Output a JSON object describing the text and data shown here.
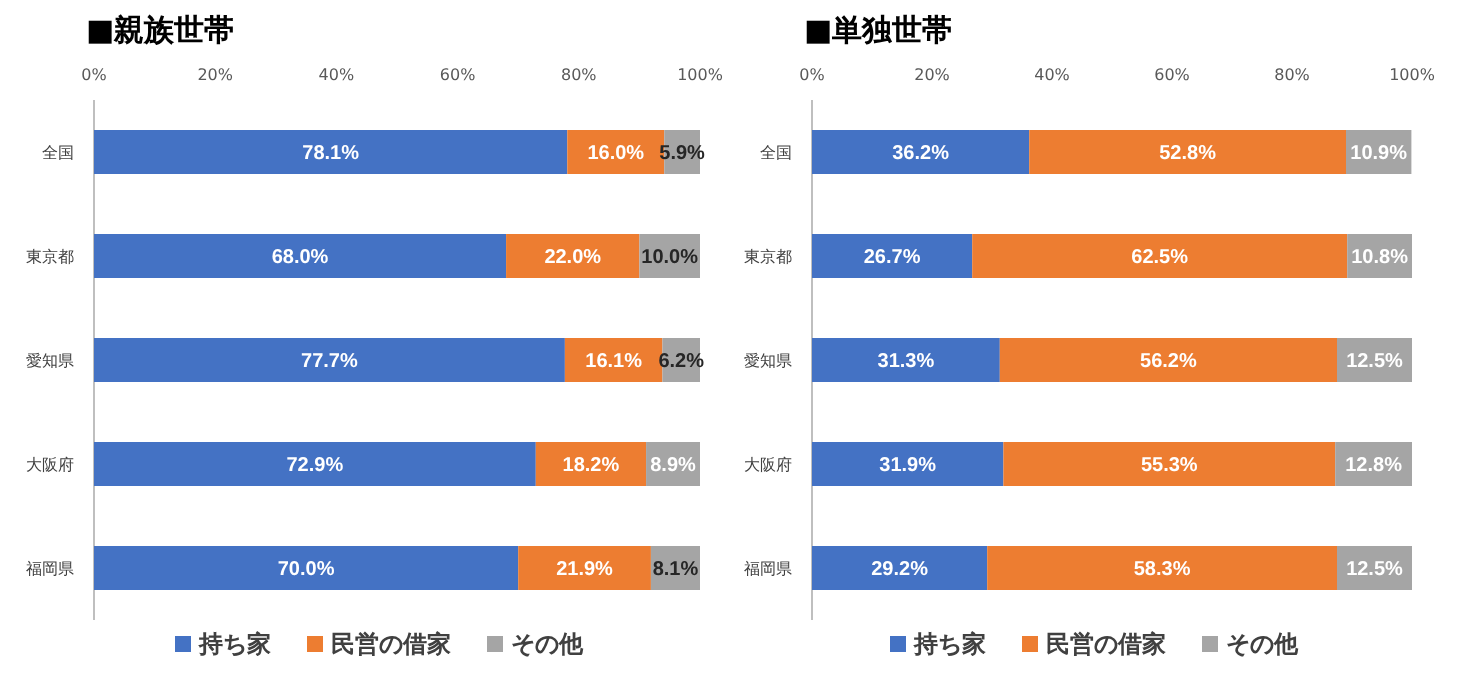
{
  "chart_data": [
    {
      "type": "bar",
      "title": "■親族世帯",
      "orientation": "horizontal",
      "stacked": true,
      "categories": [
        "全国",
        "東京都",
        "愛知県",
        "大阪府",
        "福岡県"
      ],
      "series": [
        {
          "name": "持ち家",
          "color": "#4472c4",
          "values": [
            78.1,
            68.0,
            77.7,
            72.9,
            70.0
          ],
          "value_labels": [
            "78.1%",
            "68.0%",
            "77.7%",
            "72.9%",
            "70.0%"
          ]
        },
        {
          "name": "民営の借家",
          "color": "#ed7d31",
          "values": [
            16.0,
            22.0,
            16.1,
            18.2,
            21.9
          ],
          "value_labels": [
            "16.0%",
            "22.0%",
            "16.1%",
            "18.2%",
            "21.9%"
          ]
        },
        {
          "name": "その他",
          "color": "#a5a5a5",
          "values": [
            5.9,
            10.0,
            6.2,
            8.9,
            8.1
          ],
          "value_labels": [
            "5.9%",
            "10.0%",
            "6.2%",
            "8.9%",
            "8.1%"
          ]
        }
      ],
      "xlim": [
        0,
        100
      ],
      "xticks": [
        {
          "value": 0,
          "label": "0%"
        },
        {
          "value": 20,
          "label": "20%"
        },
        {
          "value": 40,
          "label": "40%"
        },
        {
          "value": 60,
          "label": "60%"
        },
        {
          "value": 80,
          "label": "80%"
        },
        {
          "value": 100,
          "label": "100%"
        }
      ],
      "legend": "bottom",
      "grid": false
    },
    {
      "type": "bar",
      "title": "■単独世帯",
      "orientation": "horizontal",
      "stacked": true,
      "categories": [
        "全国",
        "東京都",
        "愛知県",
        "大阪府",
        "福岡県"
      ],
      "series": [
        {
          "name": "持ち家",
          "color": "#4472c4",
          "values": [
            36.2,
            26.7,
            31.3,
            31.9,
            29.2
          ],
          "value_labels": [
            "36.2%",
            "26.7%",
            "31.3%",
            "31.9%",
            "29.2%"
          ]
        },
        {
          "name": "民営の借家",
          "color": "#ed7d31",
          "values": [
            52.8,
            62.5,
            56.2,
            55.3,
            58.3
          ],
          "value_labels": [
            "52.8%",
            "62.5%",
            "56.2%",
            "55.3%",
            "58.3%"
          ]
        },
        {
          "name": "その他",
          "color": "#a5a5a5",
          "values": [
            10.9,
            10.8,
            12.5,
            12.8,
            12.5
          ],
          "value_labels": [
            "10.9%",
            "10.8%",
            "12.5%",
            "12.8%",
            "12.5%"
          ]
        }
      ],
      "xlim": [
        0,
        100
      ],
      "xticks": [
        {
          "value": 0,
          "label": "0%"
        },
        {
          "value": 20,
          "label": "20%"
        },
        {
          "value": 40,
          "label": "40%"
        },
        {
          "value": 60,
          "label": "60%"
        },
        {
          "value": 80,
          "label": "80%"
        },
        {
          "value": 100,
          "label": "100%"
        }
      ],
      "legend": "bottom",
      "grid": false
    }
  ]
}
